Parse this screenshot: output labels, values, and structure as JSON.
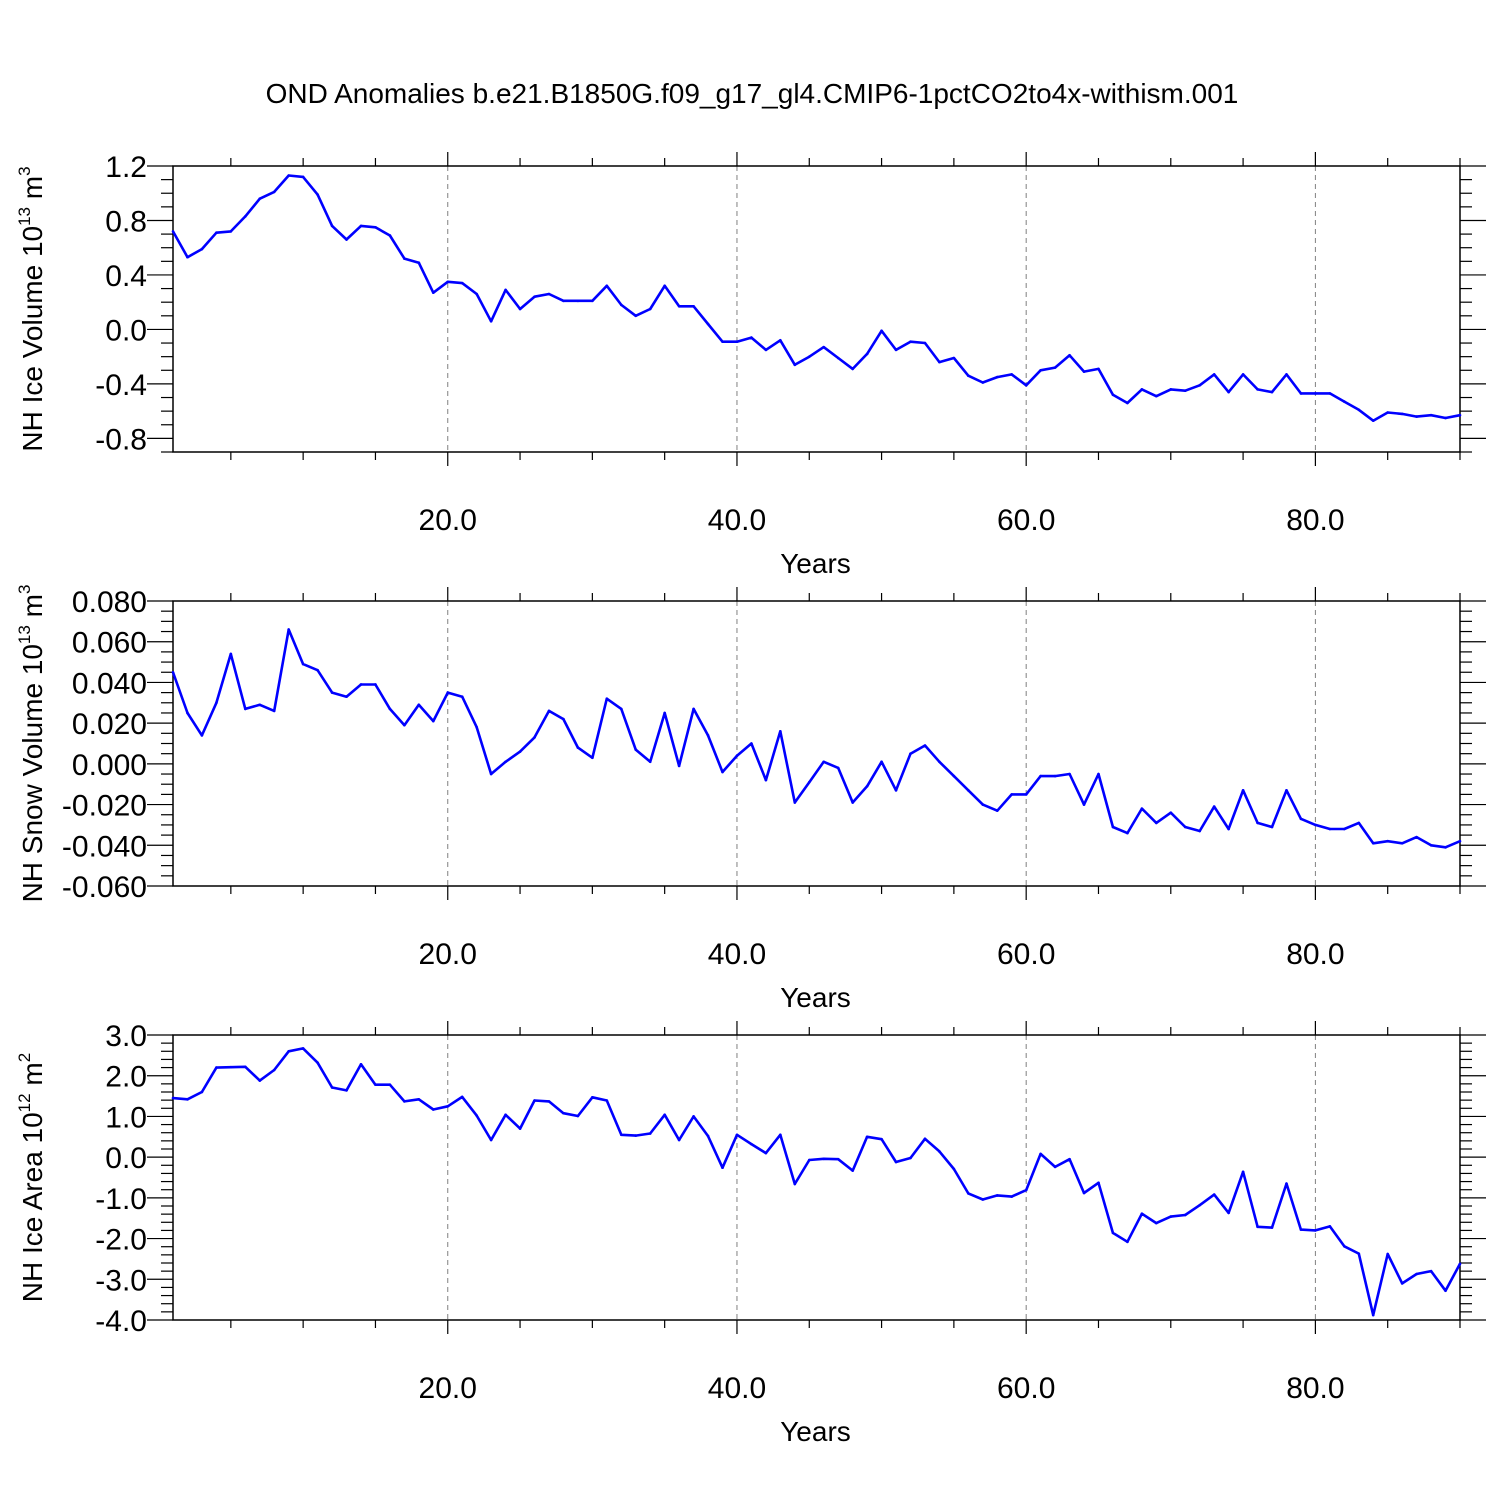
{
  "title": "OND Anomalies b.e21.B1850G.f09_g17_gl4.CMIP6-1pctCO2to4x-withism.001",
  "colors": {
    "line": "#0000ff",
    "grid": "#808080",
    "axis": "#000000"
  },
  "chart_data": [
    {
      "type": "line",
      "xlabel": "Years",
      "ylabel_main": "NH Ice Volume 10",
      "ylabel_exp": "13",
      "ylabel_unit": " m",
      "ylabel_unit_exp": "3",
      "xlim": [
        1,
        90
      ],
      "ylim": [
        -0.9,
        1.2
      ],
      "yticks": [
        1.2,
        0.8,
        0.4,
        0.0,
        -0.4,
        -0.8
      ],
      "ytick_labels": [
        "1.2",
        "0.8",
        "0.4",
        "0.0",
        "-0.4",
        "-0.8"
      ],
      "yminor": 0.1,
      "xticks": [
        20,
        40,
        60,
        80
      ],
      "xtick_labels": [
        "20.0",
        "40.0",
        "60.0",
        "80.0"
      ],
      "grid_x": true,
      "x": [
        1,
        2,
        3,
        4,
        5,
        6,
        7,
        8,
        9,
        10,
        11,
        12,
        13,
        14,
        15,
        16,
        17,
        18,
        19,
        20,
        21,
        22,
        23,
        24,
        25,
        26,
        27,
        28,
        29,
        30,
        31,
        32,
        33,
        34,
        35,
        36,
        37,
        38,
        39,
        40,
        41,
        42,
        43,
        44,
        45,
        46,
        47,
        48,
        49,
        50,
        51,
        52,
        53,
        54,
        55,
        56,
        57,
        58,
        59,
        60,
        61,
        62,
        63,
        64,
        65,
        66,
        67,
        68,
        69,
        70,
        71,
        72,
        73,
        74,
        75,
        76,
        77,
        78,
        79,
        80,
        81,
        82,
        83,
        84,
        85,
        86,
        87,
        88,
        89,
        90
      ],
      "values": [
        0.72,
        0.53,
        0.59,
        0.71,
        0.72,
        0.83,
        0.96,
        1.01,
        1.13,
        1.12,
        0.99,
        0.76,
        0.66,
        0.76,
        0.75,
        0.69,
        0.52,
        0.49,
        0.27,
        0.35,
        0.34,
        0.26,
        0.06,
        0.29,
        0.15,
        0.24,
        0.26,
        0.21,
        0.21,
        0.21,
        0.32,
        0.18,
        0.1,
        0.15,
        0.32,
        0.17,
        0.17,
        0.04,
        -0.09,
        -0.09,
        -0.06,
        -0.15,
        -0.08,
        -0.26,
        -0.2,
        -0.13,
        -0.21,
        -0.29,
        -0.18,
        -0.01,
        -0.15,
        -0.09,
        -0.1,
        -0.24,
        -0.21,
        -0.34,
        -0.39,
        -0.35,
        -0.33,
        -0.41,
        -0.3,
        -0.28,
        -0.19,
        -0.31,
        -0.29,
        -0.48,
        -0.54,
        -0.44,
        -0.49,
        -0.44,
        -0.45,
        -0.41,
        -0.33,
        -0.46,
        -0.33,
        -0.44,
        -0.46,
        -0.33,
        -0.47,
        -0.47,
        -0.47,
        -0.53,
        -0.59,
        -0.67,
        -0.61,
        -0.62,
        -0.64,
        -0.63,
        -0.65,
        -0.63
      ]
    },
    {
      "type": "line",
      "xlabel": "Years",
      "ylabel_main": "NH Snow Volume 10",
      "ylabel_exp": "13",
      "ylabel_unit": " m",
      "ylabel_unit_exp": "3",
      "xlim": [
        1,
        90
      ],
      "ylim": [
        -0.06,
        0.08
      ],
      "yticks": [
        0.08,
        0.06,
        0.04,
        0.02,
        0.0,
        -0.02,
        -0.04,
        -0.06
      ],
      "ytick_labels": [
        "0.080",
        "0.060",
        "0.040",
        "0.020",
        "0.000",
        "-0.020",
        "-0.040",
        "-0.060"
      ],
      "yminor": 0.005,
      "xticks": [
        20,
        40,
        60,
        80
      ],
      "xtick_labels": [
        "20.0",
        "40.0",
        "60.0",
        "80.0"
      ],
      "grid_x": true,
      "x": [
        1,
        2,
        3,
        4,
        5,
        6,
        7,
        8,
        9,
        10,
        11,
        12,
        13,
        14,
        15,
        16,
        17,
        18,
        19,
        20,
        21,
        22,
        23,
        24,
        25,
        26,
        27,
        28,
        29,
        30,
        31,
        32,
        33,
        34,
        35,
        36,
        37,
        38,
        39,
        40,
        41,
        42,
        43,
        44,
        45,
        46,
        47,
        48,
        49,
        50,
        51,
        52,
        53,
        54,
        55,
        56,
        57,
        58,
        59,
        60,
        61,
        62,
        63,
        64,
        65,
        66,
        67,
        68,
        69,
        70,
        71,
        72,
        73,
        74,
        75,
        76,
        77,
        78,
        79,
        80,
        81,
        82,
        83,
        84,
        85,
        86,
        87,
        88,
        89,
        90
      ],
      "values": [
        0.045,
        0.025,
        0.014,
        0.03,
        0.054,
        0.027,
        0.029,
        0.026,
        0.066,
        0.049,
        0.046,
        0.035,
        0.033,
        0.039,
        0.039,
        0.027,
        0.019,
        0.029,
        0.021,
        0.035,
        0.033,
        0.018,
        -0.005,
        0.001,
        0.006,
        0.013,
        0.026,
        0.022,
        0.008,
        0.003,
        0.032,
        0.027,
        0.007,
        0.001,
        0.025,
        -0.001,
        0.027,
        0.014,
        -0.004,
        0.004,
        0.01,
        -0.008,
        0.016,
        -0.019,
        -0.009,
        0.001,
        -0.002,
        -0.019,
        -0.011,
        0.001,
        -0.013,
        0.005,
        0.009,
        0.001,
        -0.006,
        -0.013,
        -0.02,
        -0.023,
        -0.015,
        -0.015,
        -0.006,
        -0.006,
        -0.005,
        -0.02,
        -0.005,
        -0.031,
        -0.034,
        -0.022,
        -0.029,
        -0.024,
        -0.031,
        -0.033,
        -0.021,
        -0.032,
        -0.013,
        -0.029,
        -0.031,
        -0.013,
        -0.027,
        -0.03,
        -0.032,
        -0.032,
        -0.029,
        -0.039,
        -0.038,
        -0.039,
        -0.036,
        -0.04,
        -0.041,
        -0.038
      ]
    },
    {
      "type": "line",
      "xlabel": "Years",
      "ylabel_main": "NH Ice Area 10",
      "ylabel_exp": "12",
      "ylabel_unit": " m",
      "ylabel_unit_exp": "2",
      "xlim": [
        1,
        90
      ],
      "ylim": [
        -4.0,
        3.0
      ],
      "yticks": [
        3.0,
        2.0,
        1.0,
        0.0,
        -1.0,
        -2.0,
        -3.0,
        -4.0
      ],
      "ytick_labels": [
        "3.0",
        "2.0",
        "1.0",
        "0.0",
        "-1.0",
        "-2.0",
        "-3.0",
        "-4.0"
      ],
      "yminor": 0.2,
      "xticks": [
        20,
        40,
        60,
        80
      ],
      "xtick_labels": [
        "20.0",
        "40.0",
        "60.0",
        "80.0"
      ],
      "grid_x": true,
      "x": [
        1,
        2,
        3,
        4,
        5,
        6,
        7,
        8,
        9,
        10,
        11,
        12,
        13,
        14,
        15,
        16,
        17,
        18,
        19,
        20,
        21,
        22,
        23,
        24,
        25,
        26,
        27,
        28,
        29,
        30,
        31,
        32,
        33,
        34,
        35,
        36,
        37,
        38,
        39,
        40,
        41,
        42,
        43,
        44,
        45,
        46,
        47,
        48,
        49,
        50,
        51,
        52,
        53,
        54,
        55,
        56,
        57,
        58,
        59,
        60,
        61,
        62,
        63,
        64,
        65,
        66,
        67,
        68,
        69,
        70,
        71,
        72,
        73,
        74,
        75,
        76,
        77,
        78,
        79,
        80,
        81,
        82,
        83,
        84,
        85,
        86,
        87,
        88,
        89,
        90
      ],
      "values": [
        1.45,
        1.42,
        1.6,
        2.2,
        2.21,
        2.22,
        1.88,
        2.14,
        2.6,
        2.67,
        2.32,
        1.71,
        1.64,
        2.28,
        1.78,
        1.78,
        1.37,
        1.42,
        1.17,
        1.25,
        1.48,
        1.02,
        0.42,
        1.04,
        0.7,
        1.39,
        1.37,
        1.08,
        1.01,
        1.47,
        1.39,
        0.55,
        0.53,
        0.58,
        1.04,
        0.42,
        1.0,
        0.52,
        -0.26,
        0.55,
        0.32,
        0.1,
        0.55,
        -0.66,
        -0.07,
        -0.04,
        -0.05,
        -0.33,
        0.5,
        0.44,
        -0.12,
        -0.02,
        0.45,
        0.14,
        -0.29,
        -0.89,
        -1.04,
        -0.94,
        -0.97,
        -0.81,
        0.08,
        -0.24,
        -0.05,
        -0.88,
        -0.63,
        -1.86,
        -2.08,
        -1.39,
        -1.62,
        -1.46,
        -1.42,
        -1.18,
        -0.92,
        -1.37,
        -0.36,
        -1.71,
        -1.73,
        -0.65,
        -1.78,
        -1.8,
        -1.7,
        -2.19,
        -2.37,
        -3.88,
        -2.38,
        -3.1,
        -2.87,
        -2.8,
        -3.28,
        -2.62
      ]
    }
  ]
}
